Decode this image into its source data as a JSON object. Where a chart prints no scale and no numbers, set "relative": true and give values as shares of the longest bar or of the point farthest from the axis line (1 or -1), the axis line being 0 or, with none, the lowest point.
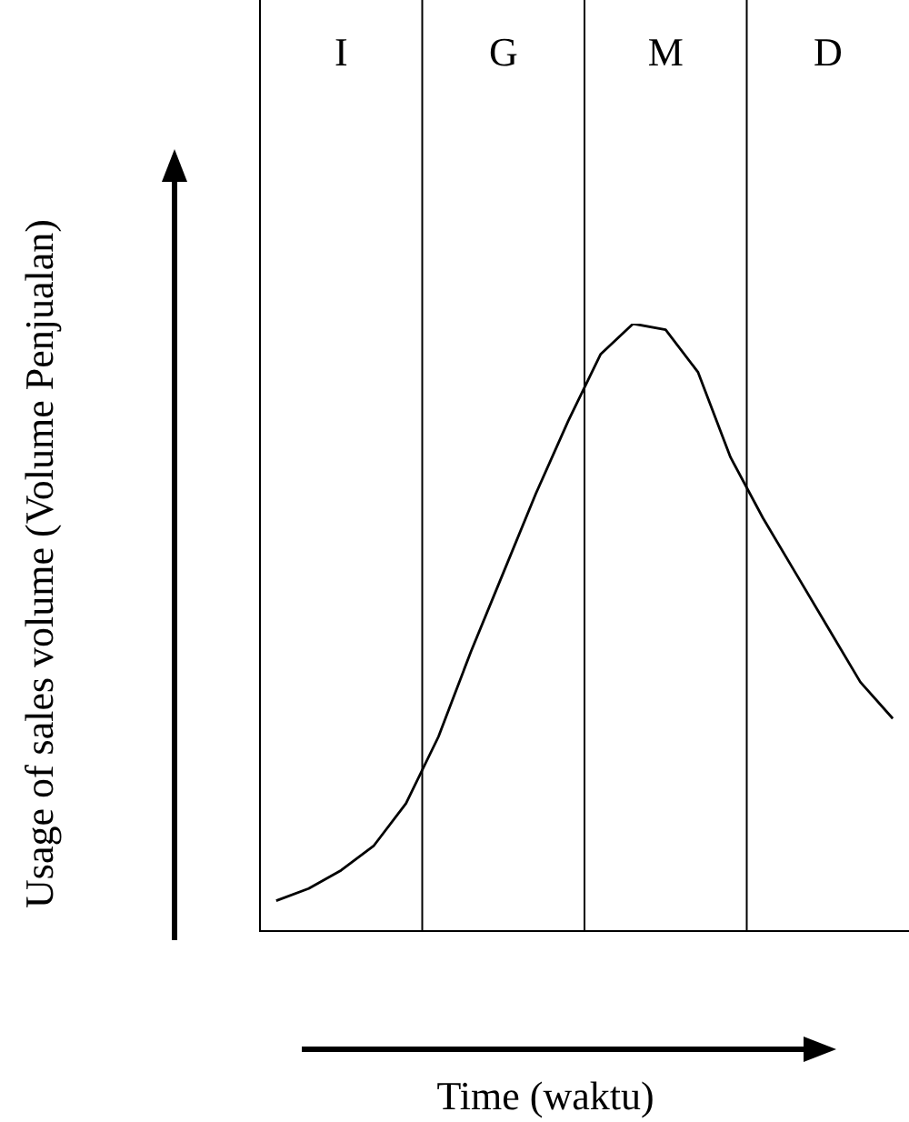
{
  "chart_data": {
    "type": "line",
    "relative": true,
    "xlabel": "Time (waktu)",
    "ylabel": "Usage of sales volume (Volume Penjualan)",
    "categories": [
      null,
      null,
      "I",
      null,
      null,
      null,
      null,
      "G",
      null,
      null,
      null,
      null,
      "M",
      null,
      null,
      null,
      null,
      "D",
      null,
      null
    ],
    "series": [
      {
        "color": "#000000",
        "values": [
          0.05,
          0.07,
          0.1,
          0.14,
          0.21,
          0.32,
          0.46,
          0.59,
          0.72,
          0.84,
          0.95,
          1.0,
          0.99,
          0.92,
          0.78,
          0.68,
          0.59,
          0.5,
          0.41,
          0.35
        ]
      }
    ],
    "grid": "x",
    "legend": false,
    "marker": "none",
    "line_style": "solid"
  }
}
